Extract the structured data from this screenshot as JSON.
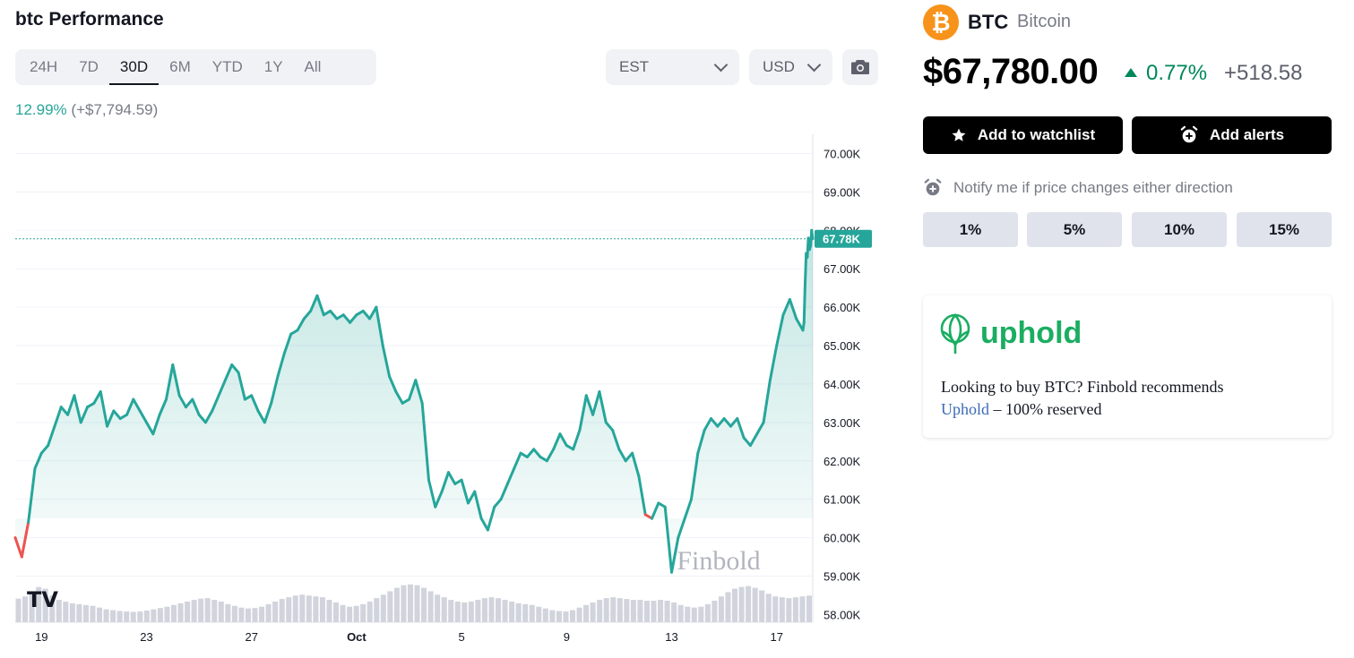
{
  "header": {
    "title": "btc Performance"
  },
  "timeframes": [
    {
      "label": "24H",
      "active": false
    },
    {
      "label": "7D",
      "active": false
    },
    {
      "label": "30D",
      "active": true
    },
    {
      "label": "6M",
      "active": false
    },
    {
      "label": "YTD",
      "active": false
    },
    {
      "label": "1Y",
      "active": false
    },
    {
      "label": "All",
      "active": false
    }
  ],
  "timezone_select": {
    "value": "EST"
  },
  "currency_select": {
    "value": "USD"
  },
  "performance": {
    "percent": "12.99%",
    "amount": "(+$7,794.59)"
  },
  "asset": {
    "symbol": "BTC",
    "name": "Bitcoin",
    "logo_glyph": "₿",
    "price": "$67,780.00",
    "change_percent": "0.77%",
    "change_abs": "+518.58"
  },
  "actions": {
    "watchlist_label": "Add to watchlist",
    "alerts_label": "Add alerts"
  },
  "notify": {
    "label": "Notify me if price changes either direction",
    "options": [
      "1%",
      "5%",
      "10%",
      "15%"
    ]
  },
  "promo": {
    "brand": "uphold",
    "text_before": "Looking to buy BTC? Finbold recommends",
    "link_text": "Uphold",
    "text_after": " – 100% reserved"
  },
  "colors": {
    "line": "#26a69a",
    "down": "#ef5350",
    "brand_green": "#1bad62",
    "btc_orange": "#f7931a"
  },
  "chart_data": {
    "type": "line",
    "watermark": "Finbold",
    "current_value_label": "67.78K",
    "current_value": 67780,
    "ylim": [
      57800,
      70500
    ],
    "y_ticks": [
      {
        "label": "70.00K",
        "value": 70000
      },
      {
        "label": "69.00K",
        "value": 69000
      },
      {
        "label": "68.00K",
        "value": 68000
      },
      {
        "label": "67.00K",
        "value": 67000
      },
      {
        "label": "66.00K",
        "value": 66000
      },
      {
        "label": "65.00K",
        "value": 65000
      },
      {
        "label": "64.00K",
        "value": 64000
      },
      {
        "label": "63.00K",
        "value": 63000
      },
      {
        "label": "62.00K",
        "value": 62000
      },
      {
        "label": "61.00K",
        "value": 61000
      },
      {
        "label": "60.00K",
        "value": 60000
      },
      {
        "label": "59.00K",
        "value": 59000
      },
      {
        "label": "58.00K",
        "value": 58000
      }
    ],
    "x_range": [
      "2024-09-18T00:00",
      "2024-10-18T09:00"
    ],
    "x_ticks": [
      {
        "label": "19",
        "date": "2024-09-19",
        "bold": false
      },
      {
        "label": "23",
        "date": "2024-09-23",
        "bold": false
      },
      {
        "label": "27",
        "date": "2024-09-27",
        "bold": false
      },
      {
        "label": "Oct",
        "date": "2024-10-01",
        "bold": true
      },
      {
        "label": "5",
        "date": "2024-10-05",
        "bold": false
      },
      {
        "label": "9",
        "date": "2024-10-09",
        "bold": false
      },
      {
        "label": "13",
        "date": "2024-10-13",
        "bold": false
      },
      {
        "label": "17",
        "date": "2024-10-17",
        "bold": false
      }
    ],
    "series": [
      {
        "points": [
          [
            "2024-09-18T00:00",
            60000
          ],
          [
            "2024-09-18T06:00",
            59500
          ],
          [
            "2024-09-18T12:00",
            60400
          ],
          [
            "2024-09-18T18:00",
            61800
          ],
          [
            "2024-09-19T00:00",
            62200
          ],
          [
            "2024-09-19T06:00",
            62400
          ],
          [
            "2024-09-19T12:00",
            62900
          ],
          [
            "2024-09-19T18:00",
            63400
          ],
          [
            "2024-09-20T00:00",
            63200
          ],
          [
            "2024-09-20T06:00",
            63700
          ],
          [
            "2024-09-20T12:00",
            63000
          ],
          [
            "2024-09-20T18:00",
            63400
          ],
          [
            "2024-09-21T00:00",
            63500
          ],
          [
            "2024-09-21T06:00",
            63800
          ],
          [
            "2024-09-21T12:00",
            62900
          ],
          [
            "2024-09-21T18:00",
            63300
          ],
          [
            "2024-09-22T00:00",
            63100
          ],
          [
            "2024-09-22T06:00",
            63200
          ],
          [
            "2024-09-22T12:00",
            63600
          ],
          [
            "2024-09-22T18:00",
            63300
          ],
          [
            "2024-09-23T00:00",
            63000
          ],
          [
            "2024-09-23T06:00",
            62700
          ],
          [
            "2024-09-23T12:00",
            63200
          ],
          [
            "2024-09-23T18:00",
            63600
          ],
          [
            "2024-09-24T00:00",
            64500
          ],
          [
            "2024-09-24T06:00",
            63700
          ],
          [
            "2024-09-24T12:00",
            63400
          ],
          [
            "2024-09-24T18:00",
            63600
          ],
          [
            "2024-09-25T00:00",
            63200
          ],
          [
            "2024-09-25T06:00",
            63000
          ],
          [
            "2024-09-25T12:00",
            63300
          ],
          [
            "2024-09-25T18:00",
            63700
          ],
          [
            "2024-09-26T00:00",
            64100
          ],
          [
            "2024-09-26T06:00",
            64500
          ],
          [
            "2024-09-26T12:00",
            64300
          ],
          [
            "2024-09-26T18:00",
            63600
          ],
          [
            "2024-09-27T00:00",
            63700
          ],
          [
            "2024-09-27T06:00",
            63300
          ],
          [
            "2024-09-27T12:00",
            63000
          ],
          [
            "2024-09-27T18:00",
            63500
          ],
          [
            "2024-09-28T00:00",
            64200
          ],
          [
            "2024-09-28T06:00",
            64800
          ],
          [
            "2024-09-28T12:00",
            65300
          ],
          [
            "2024-09-28T18:00",
            65400
          ],
          [
            "2024-09-29T00:00",
            65700
          ],
          [
            "2024-09-29T06:00",
            65900
          ],
          [
            "2024-09-29T12:00",
            66300
          ],
          [
            "2024-09-29T18:00",
            65800
          ],
          [
            "2024-09-30T00:00",
            65900
          ],
          [
            "2024-09-30T06:00",
            65700
          ],
          [
            "2024-09-30T12:00",
            65800
          ],
          [
            "2024-09-30T18:00",
            65600
          ],
          [
            "2024-10-01T00:00",
            65800
          ],
          [
            "2024-10-01T06:00",
            65900
          ],
          [
            "2024-10-01T12:00",
            65700
          ],
          [
            "2024-10-01T18:00",
            66000
          ],
          [
            "2024-10-02T00:00",
            65000
          ],
          [
            "2024-10-02T06:00",
            64200
          ],
          [
            "2024-10-02T12:00",
            63800
          ],
          [
            "2024-10-02T18:00",
            63500
          ],
          [
            "2024-10-03T00:00",
            63600
          ],
          [
            "2024-10-03T06:00",
            64100
          ],
          [
            "2024-10-03T12:00",
            63500
          ],
          [
            "2024-10-03T18:00",
            61500
          ],
          [
            "2024-10-04T00:00",
            60800
          ],
          [
            "2024-10-04T06:00",
            61200
          ],
          [
            "2024-10-04T12:00",
            61700
          ],
          [
            "2024-10-04T18:00",
            61400
          ],
          [
            "2024-10-05T00:00",
            61500
          ],
          [
            "2024-10-05T06:00",
            60900
          ],
          [
            "2024-10-05T12:00",
            61200
          ],
          [
            "2024-10-05T18:00",
            60500
          ],
          [
            "2024-10-06T00:00",
            60200
          ],
          [
            "2024-10-06T06:00",
            60800
          ],
          [
            "2024-10-06T12:00",
            61000
          ],
          [
            "2024-10-06T18:00",
            61400
          ],
          [
            "2024-10-07T00:00",
            61800
          ],
          [
            "2024-10-07T06:00",
            62200
          ],
          [
            "2024-10-07T12:00",
            62100
          ],
          [
            "2024-10-07T18:00",
            62300
          ],
          [
            "2024-10-08T00:00",
            62100
          ],
          [
            "2024-10-08T06:00",
            62000
          ],
          [
            "2024-10-08T12:00",
            62300
          ],
          [
            "2024-10-08T18:00",
            62700
          ],
          [
            "2024-10-09T00:00",
            62400
          ],
          [
            "2024-10-09T06:00",
            62300
          ],
          [
            "2024-10-09T12:00",
            62800
          ],
          [
            "2024-10-09T18:00",
            63700
          ],
          [
            "2024-10-10T00:00",
            63200
          ],
          [
            "2024-10-10T06:00",
            63800
          ],
          [
            "2024-10-10T12:00",
            63000
          ],
          [
            "2024-10-10T18:00",
            62800
          ],
          [
            "2024-10-11T00:00",
            62300
          ],
          [
            "2024-10-11T06:00",
            62000
          ],
          [
            "2024-10-11T12:00",
            62200
          ],
          [
            "2024-10-11T18:00",
            61600
          ],
          [
            "2024-10-12T00:00",
            60600
          ],
          [
            "2024-10-12T06:00",
            60500
          ],
          [
            "2024-10-12T12:00",
            60900
          ],
          [
            "2024-10-12T18:00",
            60800
          ],
          [
            "2024-10-13T00:00",
            59100
          ],
          [
            "2024-10-13T06:00",
            60000
          ],
          [
            "2024-10-13T12:00",
            60500
          ],
          [
            "2024-10-13T18:00",
            61000
          ],
          [
            "2024-10-14T00:00",
            62200
          ],
          [
            "2024-10-14T06:00",
            62800
          ],
          [
            "2024-10-14T12:00",
            63100
          ],
          [
            "2024-10-14T18:00",
            62900
          ],
          [
            "2024-10-15T00:00",
            63100
          ],
          [
            "2024-10-15T06:00",
            62900
          ],
          [
            "2024-10-15T12:00",
            63100
          ],
          [
            "2024-10-15T18:00",
            62600
          ],
          [
            "2024-10-16T00:00",
            62400
          ],
          [
            "2024-10-16T06:00",
            62700
          ],
          [
            "2024-10-16T12:00",
            63000
          ],
          [
            "2024-10-16T18:00",
            64100
          ],
          [
            "2024-10-17T00:00",
            65000
          ],
          [
            "2024-10-17T06:00",
            65800
          ],
          [
            "2024-10-17T12:00",
            66200
          ],
          [
            "2024-10-17T18:00",
            65700
          ],
          [
            "2024-10-18T00:00",
            65400
          ],
          [
            "2024-10-18T01:00",
            65600
          ],
          [
            "2024-10-18T02:00",
            66600
          ],
          [
            "2024-10-18T03:00",
            67400
          ],
          [
            "2024-10-18T04:00",
            67300
          ],
          [
            "2024-10-18T05:00",
            67800
          ],
          [
            "2024-10-18T06:00",
            67500
          ],
          [
            "2024-10-18T07:00",
            67600
          ],
          [
            "2024-10-18T08:00",
            68000
          ],
          [
            "2024-10-18T09:00",
            67780
          ]
        ],
        "red_segments": [
          [
            0,
            2
          ],
          [
            96,
            97
          ]
        ]
      }
    ],
    "volume": [
      0.55,
      0.6,
      0.72,
      0.82,
      0.78,
      0.62,
      0.52,
      0.48,
      0.44,
      0.42,
      0.4,
      0.38,
      0.34,
      0.3,
      0.28,
      0.26,
      0.25,
      0.24,
      0.25,
      0.27,
      0.3,
      0.33,
      0.36,
      0.4,
      0.44,
      0.48,
      0.52,
      0.55,
      0.56,
      0.52,
      0.48,
      0.42,
      0.38,
      0.34,
      0.32,
      0.33,
      0.36,
      0.42,
      0.48,
      0.54,
      0.58,
      0.62,
      0.64,
      0.62,
      0.6,
      0.58,
      0.52,
      0.46,
      0.4,
      0.36,
      0.38,
      0.42,
      0.48,
      0.56,
      0.64,
      0.72,
      0.8,
      0.86,
      0.88,
      0.86,
      0.8,
      0.72,
      0.64,
      0.58,
      0.52,
      0.48,
      0.46,
      0.48,
      0.52,
      0.56,
      0.58,
      0.56,
      0.52,
      0.48,
      0.44,
      0.42,
      0.4,
      0.36,
      0.32,
      0.28,
      0.26,
      0.25,
      0.28,
      0.34,
      0.4,
      0.46,
      0.52,
      0.56,
      0.58,
      0.56,
      0.54,
      0.52,
      0.52,
      0.5,
      0.5,
      0.52,
      0.5,
      0.46,
      0.4,
      0.36,
      0.34,
      0.36,
      0.42,
      0.5,
      0.6,
      0.7,
      0.78,
      0.82,
      0.84,
      0.8,
      0.74,
      0.66,
      0.6,
      0.58,
      0.56,
      0.58,
      0.6,
      0.62
    ]
  }
}
